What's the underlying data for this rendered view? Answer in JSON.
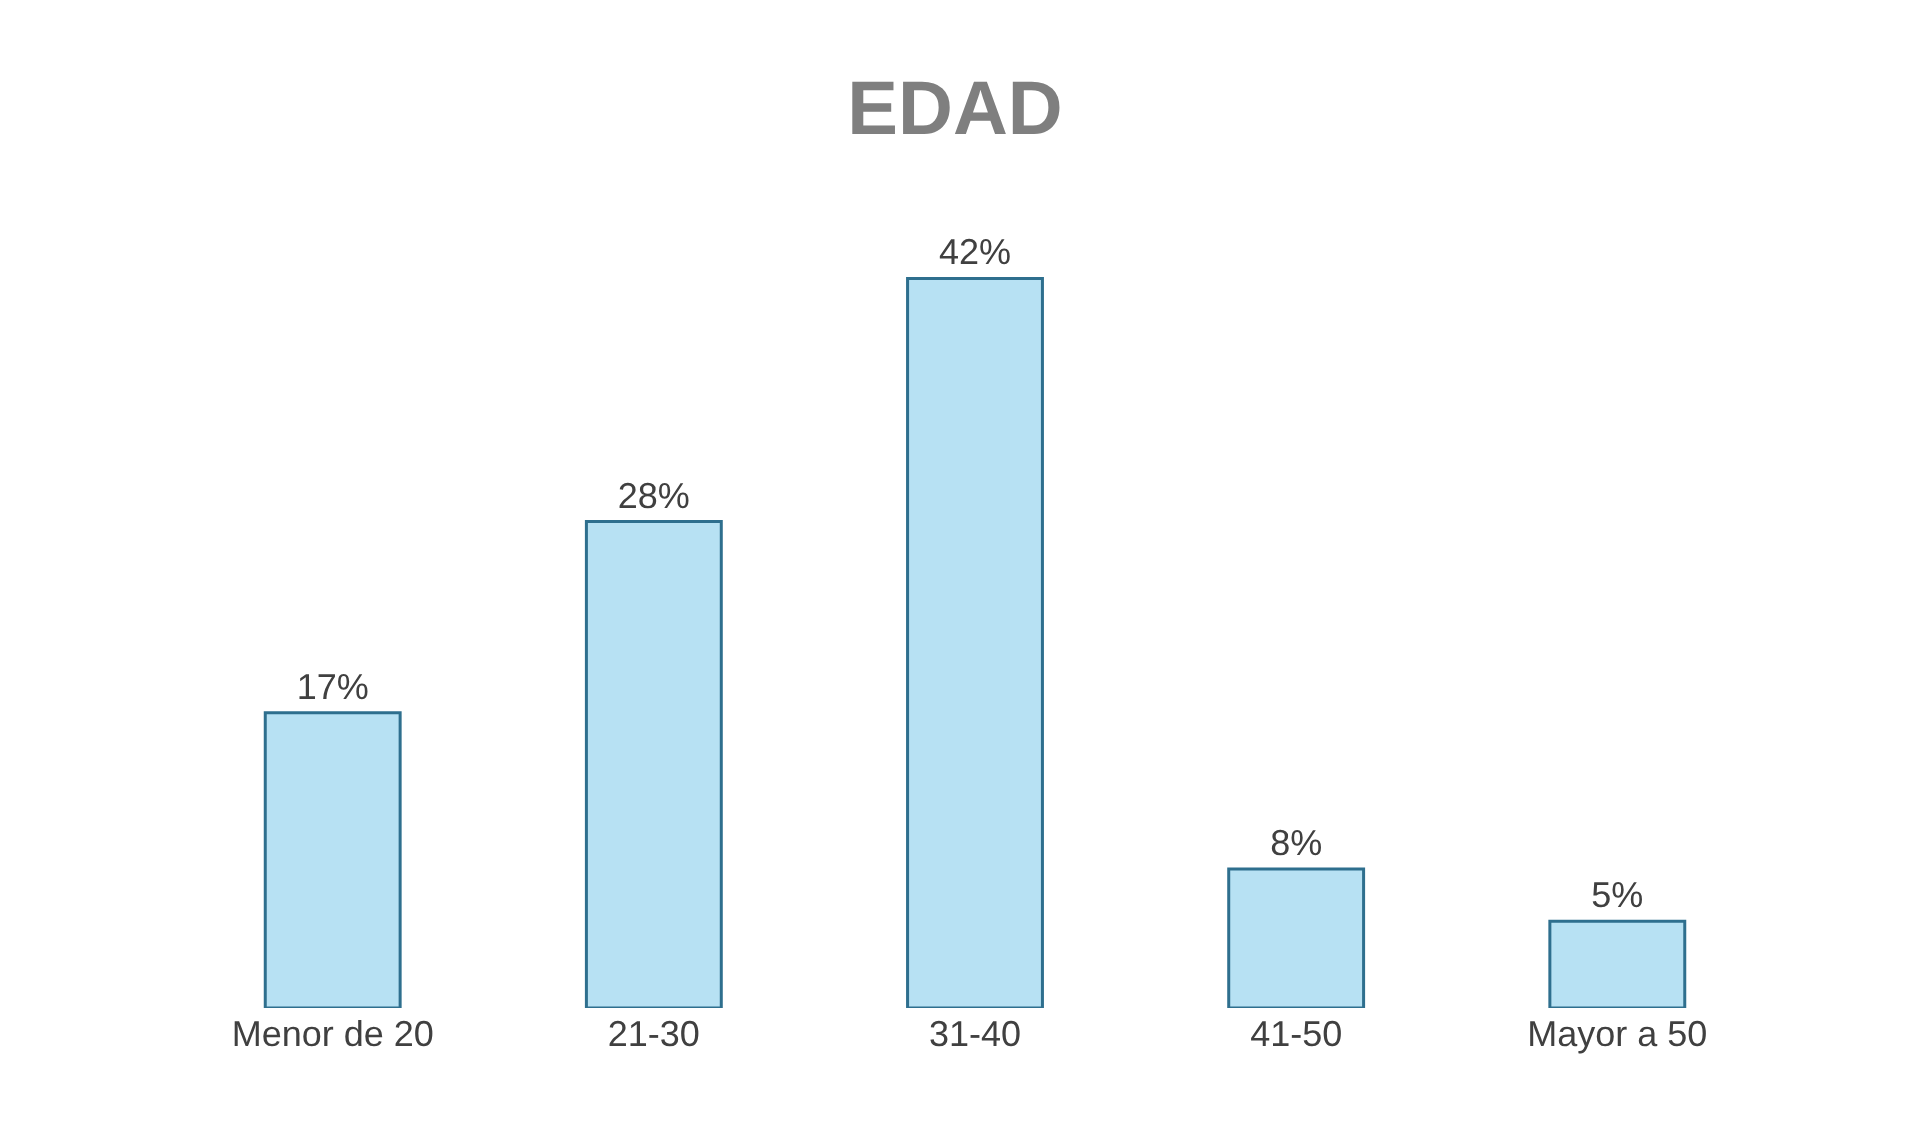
{
  "chart_data": {
    "type": "bar",
    "title": "EDAD",
    "categories": [
      "Menor de 20",
      "21-30",
      "31-40",
      "41-50",
      "Mayor a 50"
    ],
    "values": [
      17,
      28,
      42,
      8,
      5
    ],
    "value_labels": [
      "17%",
      "28%",
      "42%",
      "8%",
      "5%"
    ],
    "color": "#b7e1f3",
    "grid": false,
    "legend": false
  }
}
